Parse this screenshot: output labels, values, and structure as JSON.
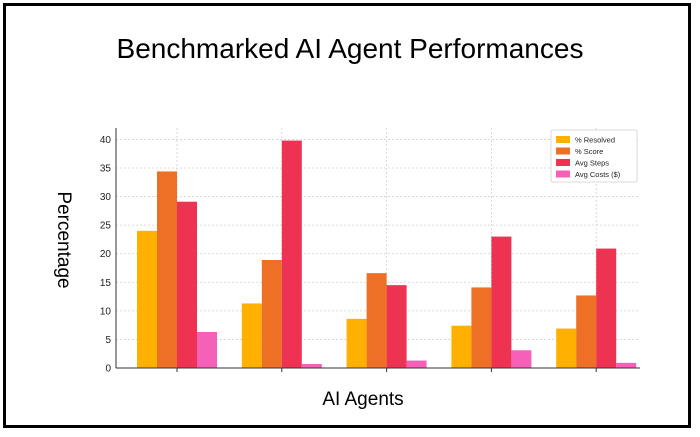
{
  "chart_data": {
    "type": "bar",
    "title": "Benchmarked AI Agent Performances",
    "xlabel": "AI Agents",
    "ylabel": "Percentage",
    "ylim": [
      0,
      42
    ],
    "yticks": [
      "0",
      "5",
      "10",
      "15",
      "20",
      "25",
      "30",
      "35",
      "40"
    ],
    "categories": [
      "",
      "",
      "",
      "",
      ""
    ],
    "grid": true,
    "legend_position": "top-right",
    "series": [
      {
        "name": "% Resolved",
        "color": "#FFB000",
        "values": [
          24.0,
          11.3,
          8.6,
          7.4,
          6.9
        ]
      },
      {
        "name": "% Score",
        "color": "#EE7024",
        "values": [
          34.4,
          18.9,
          16.6,
          14.1,
          12.7
        ]
      },
      {
        "name": "Avg Steps",
        "color": "#EE3352",
        "values": [
          29.1,
          39.8,
          14.5,
          23.0,
          20.9
        ]
      },
      {
        "name": "Avg Costs ($)",
        "color": "#F560B8",
        "values": [
          6.3,
          0.7,
          1.3,
          3.1,
          0.9
        ]
      }
    ]
  }
}
